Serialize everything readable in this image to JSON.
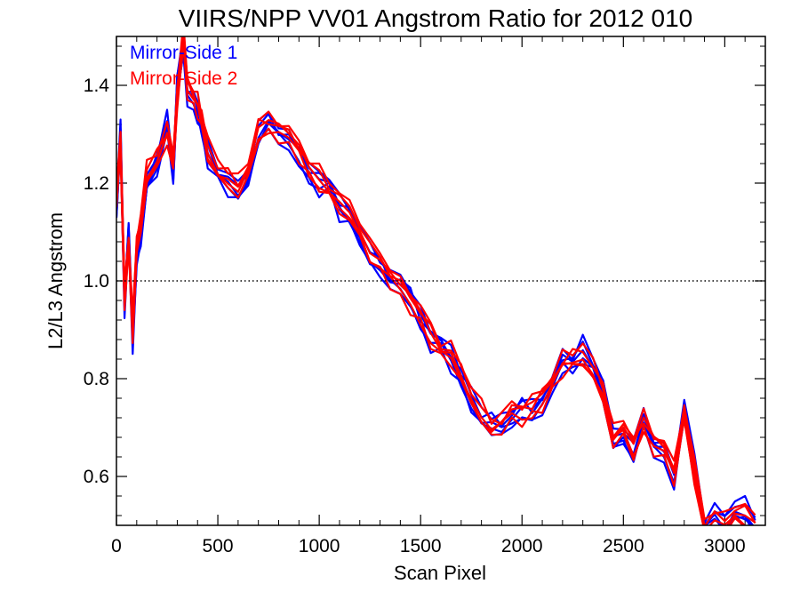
{
  "chart_data": {
    "type": "line",
    "title": "VIIRS/NPP VV01 Angstrom Ratio for 2012 010",
    "xlabel": "Scan Pixel",
    "ylabel": "L2/L3 Angstrom",
    "xlim": [
      0,
      3200
    ],
    "ylim": [
      0.5,
      1.5
    ],
    "x_ticks": [
      0,
      500,
      1000,
      1500,
      2000,
      2500,
      3000
    ],
    "y_ticks": [
      0.6,
      0.8,
      1.0,
      1.2,
      1.4
    ],
    "x_tick_labels": [
      "0",
      "500",
      "1000",
      "1500",
      "2000",
      "2500",
      "3000"
    ],
    "y_tick_labels": [
      "0.6",
      "0.8",
      "1.0",
      "1.2",
      "1.4"
    ],
    "reference_line": {
      "y": 1.0,
      "style": "dotted"
    },
    "legend": {
      "placement": "top-left"
    },
    "series": [
      {
        "name": "Mirror-Side 1",
        "color": "#0000ff",
        "x": [
          0,
          20,
          40,
          60,
          80,
          100,
          120,
          150,
          200,
          250,
          280,
          300,
          330,
          350,
          380,
          400,
          420,
          450,
          500,
          550,
          600,
          650,
          700,
          750,
          800,
          850,
          900,
          950,
          1000,
          1050,
          1100,
          1150,
          1200,
          1250,
          1300,
          1350,
          1400,
          1450,
          1500,
          1550,
          1600,
          1650,
          1700,
          1750,
          1800,
          1850,
          1900,
          1950,
          2000,
          2050,
          2100,
          2150,
          2200,
          2250,
          2300,
          2350,
          2400,
          2450,
          2500,
          2550,
          2600,
          2650,
          2700,
          2750,
          2800,
          2850,
          2900,
          2950,
          3000,
          3050,
          3100,
          3150
        ],
        "y": [
          1.15,
          1.3,
          0.95,
          1.1,
          0.88,
          1.05,
          1.1,
          1.2,
          1.24,
          1.32,
          1.22,
          1.4,
          1.48,
          1.38,
          1.36,
          1.35,
          1.32,
          1.26,
          1.22,
          1.2,
          1.18,
          1.22,
          1.3,
          1.33,
          1.3,
          1.28,
          1.26,
          1.22,
          1.2,
          1.2,
          1.15,
          1.13,
          1.1,
          1.05,
          1.03,
          1.0,
          0.99,
          0.97,
          0.92,
          0.88,
          0.87,
          0.84,
          0.8,
          0.76,
          0.72,
          0.71,
          0.7,
          0.72,
          0.74,
          0.73,
          0.75,
          0.78,
          0.84,
          0.83,
          0.86,
          0.83,
          0.78,
          0.67,
          0.69,
          0.65,
          0.72,
          0.66,
          0.64,
          0.6,
          0.74,
          0.62,
          0.5,
          0.52,
          0.5,
          0.54,
          0.53,
          0.5
        ]
      },
      {
        "name": "Mirror-Side 2",
        "color": "#ff0000",
        "x": [
          0,
          20,
          40,
          60,
          80,
          100,
          120,
          150,
          200,
          250,
          280,
          300,
          330,
          350,
          380,
          400,
          420,
          450,
          500,
          550,
          600,
          650,
          700,
          750,
          800,
          850,
          900,
          950,
          1000,
          1050,
          1100,
          1150,
          1200,
          1250,
          1300,
          1350,
          1400,
          1450,
          1500,
          1550,
          1600,
          1650,
          1700,
          1750,
          1800,
          1850,
          1900,
          1950,
          2000,
          2050,
          2100,
          2150,
          2200,
          2250,
          2300,
          2350,
          2400,
          2450,
          2500,
          2550,
          2600,
          2650,
          2700,
          2750,
          2800,
          2850,
          2900,
          2950,
          3000,
          3050,
          3100,
          3150
        ],
        "y": [
          1.18,
          1.28,
          0.97,
          1.08,
          0.9,
          1.07,
          1.12,
          1.22,
          1.25,
          1.3,
          1.24,
          1.38,
          1.5,
          1.4,
          1.37,
          1.36,
          1.33,
          1.27,
          1.23,
          1.21,
          1.19,
          1.23,
          1.31,
          1.32,
          1.31,
          1.29,
          1.27,
          1.23,
          1.21,
          1.19,
          1.16,
          1.14,
          1.11,
          1.06,
          1.04,
          1.01,
          0.98,
          0.96,
          0.93,
          0.89,
          0.86,
          0.85,
          0.81,
          0.77,
          0.73,
          0.7,
          0.71,
          0.73,
          0.73,
          0.74,
          0.76,
          0.79,
          0.83,
          0.84,
          0.85,
          0.82,
          0.77,
          0.68,
          0.7,
          0.66,
          0.71,
          0.67,
          0.65,
          0.61,
          0.73,
          0.61,
          0.5,
          0.51,
          0.5,
          0.53,
          0.52,
          0.5
        ]
      }
    ]
  }
}
